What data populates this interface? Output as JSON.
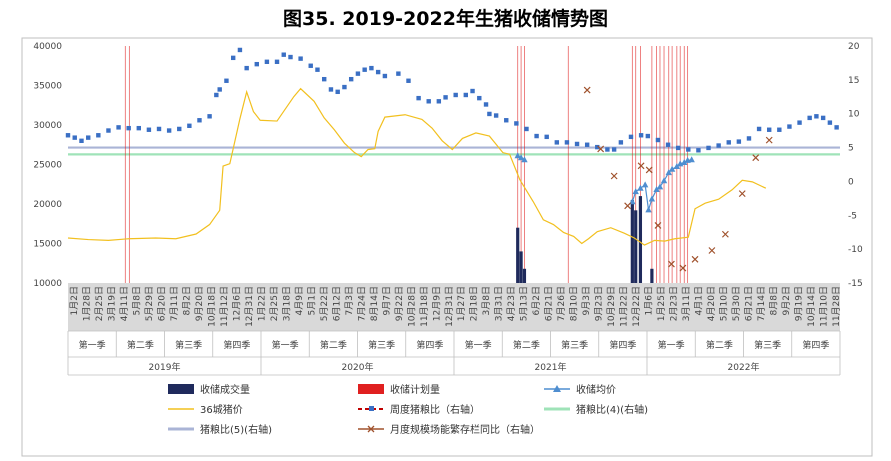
{
  "chart_data": {
    "type": "line",
    "title": "图35. 2019-2022年生猪收储情势图",
    "y_left": {
      "ticks": [
        "40000",
        "35000",
        "30000",
        "25000",
        "20000",
        "15000",
        "10000"
      ],
      "ylim": [
        10000,
        40000
      ]
    },
    "y_right": {
      "ticks": [
        "20",
        "15",
        "10",
        "5",
        "0",
        "-5",
        "-10",
        "-15"
      ],
      "ylim": [
        -15,
        20
      ]
    },
    "date_labels": [
      "1月2日",
      "1月28日",
      "2月25日",
      "3月19日",
      "4月11日",
      "5月8日",
      "5月29日",
      "6月20日",
      "7月11日",
      "8月2日",
      "9月20日",
      "10月18日",
      "11月12日",
      "12月6日",
      "12月31日",
      "1月22日",
      "2月25日",
      "3月18日",
      "4月9日",
      "5月1日",
      "5月22日",
      "6月12日",
      "7月3日",
      "7月24日",
      "8月14日",
      "9月7日",
      "9月22日",
      "10月28日",
      "11月18日",
      "12月9日",
      "12月31日",
      "1月27日",
      "2月18日",
      "3月8日",
      "3月31日",
      "4月23日",
      "5月13日",
      "6月2日",
      "6月21日",
      "7月26日",
      "8月10日",
      "9月3日",
      "9月23日",
      "10月29日",
      "11月22日",
      "12月22日",
      "1月6日",
      "1月25日",
      "2月23日",
      "3月11日",
      "4月1日",
      "4月20日",
      "5月10日",
      "5月30日",
      "6月21日",
      "7月14日",
      "8月8日",
      "9月2日",
      "9月19日",
      "10月14日",
      "11月10日",
      "11月28日"
    ],
    "quarters": [
      "第一季",
      "第二季",
      "第三季",
      "第四季",
      "第一季",
      "第二季",
      "第三季",
      "第四季",
      "第一季",
      "第二季",
      "第三季",
      "第四季",
      "第一季",
      "第二季",
      "第三季",
      "第四季"
    ],
    "years": [
      "2019年",
      "2020年",
      "2021年",
      "2022年"
    ],
    "series": [
      {
        "name": "收储成交量",
        "color": "#1f2a5c",
        "type": "bar",
        "points": [
          [
            0.667,
            17000
          ],
          [
            0.672,
            14000
          ],
          [
            0.677,
            11800
          ],
          [
            0.837,
            20500
          ],
          [
            0.842,
            19200
          ],
          [
            0.849,
            21000
          ],
          [
            0.866,
            11800
          ]
        ]
      },
      {
        "name": "收储计划量",
        "color": "#e02020",
        "type": "vline",
        "x": [
          0.085,
          0.091,
          0.667,
          0.672,
          0.677,
          0.742,
          0.837,
          0.842,
          0.849,
          0.866,
          0.873,
          0.878,
          0.884,
          0.891,
          0.896,
          0.903,
          0.908,
          0.914,
          0.919
        ]
      },
      {
        "name": "收储均价",
        "color": "#4f8ed0",
        "type": "line-triangle",
        "points": [
          [
            0.667,
            3.8
          ],
          [
            0.672,
            3.5
          ],
          [
            0.677,
            3.2
          ],
          [
            0.837,
            -3.0
          ],
          [
            0.842,
            -1.5
          ],
          [
            0.849,
            -1.0
          ],
          [
            0.856,
            -0.5
          ],
          [
            0.861,
            -4.2
          ],
          [
            0.866,
            -2.6
          ],
          [
            0.873,
            -1.2
          ],
          [
            0.878,
            -0.8
          ],
          [
            0.884,
            0.1
          ],
          [
            0.891,
            1.3
          ],
          [
            0.896,
            1.8
          ],
          [
            0.903,
            2.2
          ],
          [
            0.908,
            2.6
          ],
          [
            0.914,
            2.8
          ],
          [
            0.919,
            3.1
          ],
          [
            0.925,
            3.2
          ]
        ]
      },
      {
        "name": "36城猪价",
        "color": "#f2c01f",
        "type": "line",
        "points": [
          [
            0.0,
            15700
          ],
          [
            0.03,
            15500
          ],
          [
            0.06,
            15400
          ],
          [
            0.09,
            15600
          ],
          [
            0.13,
            15700
          ],
          [
            0.16,
            15600
          ],
          [
            0.19,
            16200
          ],
          [
            0.21,
            17400
          ],
          [
            0.225,
            19200
          ],
          [
            0.23,
            24800
          ],
          [
            0.24,
            25100
          ],
          [
            0.255,
            30800
          ],
          [
            0.265,
            34200
          ],
          [
            0.275,
            31700
          ],
          [
            0.285,
            30600
          ],
          [
            0.31,
            30500
          ],
          [
            0.335,
            33600
          ],
          [
            0.345,
            34600
          ],
          [
            0.365,
            33000
          ],
          [
            0.38,
            30900
          ],
          [
            0.395,
            29400
          ],
          [
            0.41,
            27700
          ],
          [
            0.425,
            26500
          ],
          [
            0.435,
            26000
          ],
          [
            0.445,
            26900
          ],
          [
            0.455,
            27000
          ],
          [
            0.46,
            29200
          ],
          [
            0.47,
            31000
          ],
          [
            0.5,
            31300
          ],
          [
            0.525,
            30700
          ],
          [
            0.54,
            29600
          ],
          [
            0.555,
            28000
          ],
          [
            0.57,
            26900
          ],
          [
            0.585,
            28300
          ],
          [
            0.605,
            29000
          ],
          [
            0.625,
            28600
          ],
          [
            0.645,
            26500
          ],
          [
            0.655,
            26300
          ],
          [
            0.67,
            23100
          ],
          [
            0.69,
            20300
          ],
          [
            0.705,
            18000
          ],
          [
            0.72,
            17400
          ],
          [
            0.735,
            16400
          ],
          [
            0.75,
            15900
          ],
          [
            0.762,
            15000
          ],
          [
            0.772,
            15600
          ],
          [
            0.785,
            16500
          ],
          [
            0.805,
            17000
          ],
          [
            0.825,
            16300
          ],
          [
            0.84,
            15700
          ],
          [
            0.855,
            14800
          ],
          [
            0.87,
            15400
          ],
          [
            0.885,
            15300
          ],
          [
            0.9,
            15600
          ],
          [
            0.92,
            15800
          ],
          [
            0.93,
            19400
          ],
          [
            0.945,
            20100
          ],
          [
            0.965,
            20600
          ],
          [
            0.985,
            21800
          ],
          [
            1.0,
            23000
          ],
          [
            1.015,
            22800
          ],
          [
            1.035,
            22000
          ]
        ]
      },
      {
        "name": "周度猪粮比（右轴）",
        "color": "#3a6fc4",
        "type": "line-square",
        "points": [
          [
            0.0,
            28700
          ],
          [
            0.01,
            28400
          ],
          [
            0.02,
            28000
          ],
          [
            0.03,
            28400
          ],
          [
            0.045,
            28700
          ],
          [
            0.06,
            29300
          ],
          [
            0.075,
            29700
          ],
          [
            0.09,
            29600
          ],
          [
            0.105,
            29600
          ],
          [
            0.12,
            29400
          ],
          [
            0.135,
            29500
          ],
          [
            0.15,
            29300
          ],
          [
            0.165,
            29500
          ],
          [
            0.18,
            29900
          ],
          [
            0.195,
            30600
          ],
          [
            0.21,
            31100
          ],
          [
            0.22,
            33800
          ],
          [
            0.225,
            34500
          ],
          [
            0.235,
            35600
          ],
          [
            0.245,
            38500
          ],
          [
            0.255,
            39500
          ],
          [
            0.265,
            37200
          ],
          [
            0.28,
            37700
          ],
          [
            0.295,
            38000
          ],
          [
            0.31,
            38000
          ],
          [
            0.32,
            38900
          ],
          [
            0.33,
            38600
          ],
          [
            0.345,
            38400
          ],
          [
            0.36,
            37500
          ],
          [
            0.37,
            37000
          ],
          [
            0.38,
            35800
          ],
          [
            0.39,
            34500
          ],
          [
            0.4,
            34200
          ],
          [
            0.41,
            34800
          ],
          [
            0.42,
            35800
          ],
          [
            0.43,
            36500
          ],
          [
            0.44,
            37000
          ],
          [
            0.45,
            37200
          ],
          [
            0.46,
            36700
          ],
          [
            0.47,
            36200
          ],
          [
            0.49,
            36500
          ],
          [
            0.505,
            35600
          ],
          [
            0.52,
            33400
          ],
          [
            0.535,
            33000
          ],
          [
            0.55,
            33000
          ],
          [
            0.56,
            33500
          ],
          [
            0.575,
            33800
          ],
          [
            0.59,
            33800
          ],
          [
            0.6,
            34300
          ],
          [
            0.61,
            33400
          ],
          [
            0.62,
            32600
          ],
          [
            0.625,
            31400
          ],
          [
            0.635,
            31200
          ],
          [
            0.65,
            30600
          ],
          [
            0.665,
            30200
          ],
          [
            0.68,
            29500
          ],
          [
            0.695,
            28600
          ],
          [
            0.71,
            28500
          ],
          [
            0.725,
            27800
          ],
          [
            0.74,
            27800
          ],
          [
            0.755,
            27600
          ],
          [
            0.77,
            27500
          ],
          [
            0.785,
            27200
          ],
          [
            0.8,
            26900
          ],
          [
            0.81,
            26900
          ],
          [
            0.82,
            27800
          ],
          [
            0.835,
            28500
          ],
          [
            0.85,
            28700
          ],
          [
            0.86,
            28600
          ],
          [
            0.875,
            28100
          ],
          [
            0.89,
            27500
          ],
          [
            0.905,
            27100
          ],
          [
            0.92,
            26900
          ],
          [
            0.935,
            26800
          ],
          [
            0.95,
            27100
          ],
          [
            0.965,
            27400
          ],
          [
            0.98,
            27800
          ],
          [
            0.995,
            27900
          ],
          [
            1.01,
            28300
          ],
          [
            1.025,
            29500
          ],
          [
            1.04,
            29400
          ],
          [
            1.055,
            29400
          ],
          [
            1.07,
            29800
          ],
          [
            1.085,
            30300
          ],
          [
            1.1,
            30900
          ],
          [
            1.11,
            31100
          ],
          [
            1.12,
            30900
          ],
          [
            1.13,
            30300
          ],
          [
            1.14,
            29700
          ]
        ]
      },
      {
        "name": "猪粮比(4)(右轴)",
        "color": "#9fe3b8",
        "type": "hline",
        "value": 4
      },
      {
        "name": "猪粮比(5)(右轴)",
        "color": "#aab4d6",
        "type": "hline",
        "value": 5
      },
      {
        "name": "月度规模场能繁存栏同比（右轴）",
        "color": "#a0522d",
        "type": "scatter-x",
        "points": [
          [
            0.77,
            13.5
          ],
          [
            0.79,
            4.8
          ],
          [
            0.81,
            0.8
          ],
          [
            0.83,
            -3.6
          ],
          [
            0.85,
            2.3
          ],
          [
            0.862,
            1.7
          ],
          [
            0.875,
            -6.5
          ],
          [
            0.895,
            -12.2
          ],
          [
            0.912,
            -12.8
          ],
          [
            0.93,
            -11.5
          ],
          [
            0.955,
            -10.2
          ],
          [
            0.975,
            -7.8
          ],
          [
            1.0,
            -1.8
          ],
          [
            1.02,
            3.5
          ],
          [
            1.04,
            6.1
          ]
        ]
      }
    ],
    "legend_placement": "bottom"
  }
}
